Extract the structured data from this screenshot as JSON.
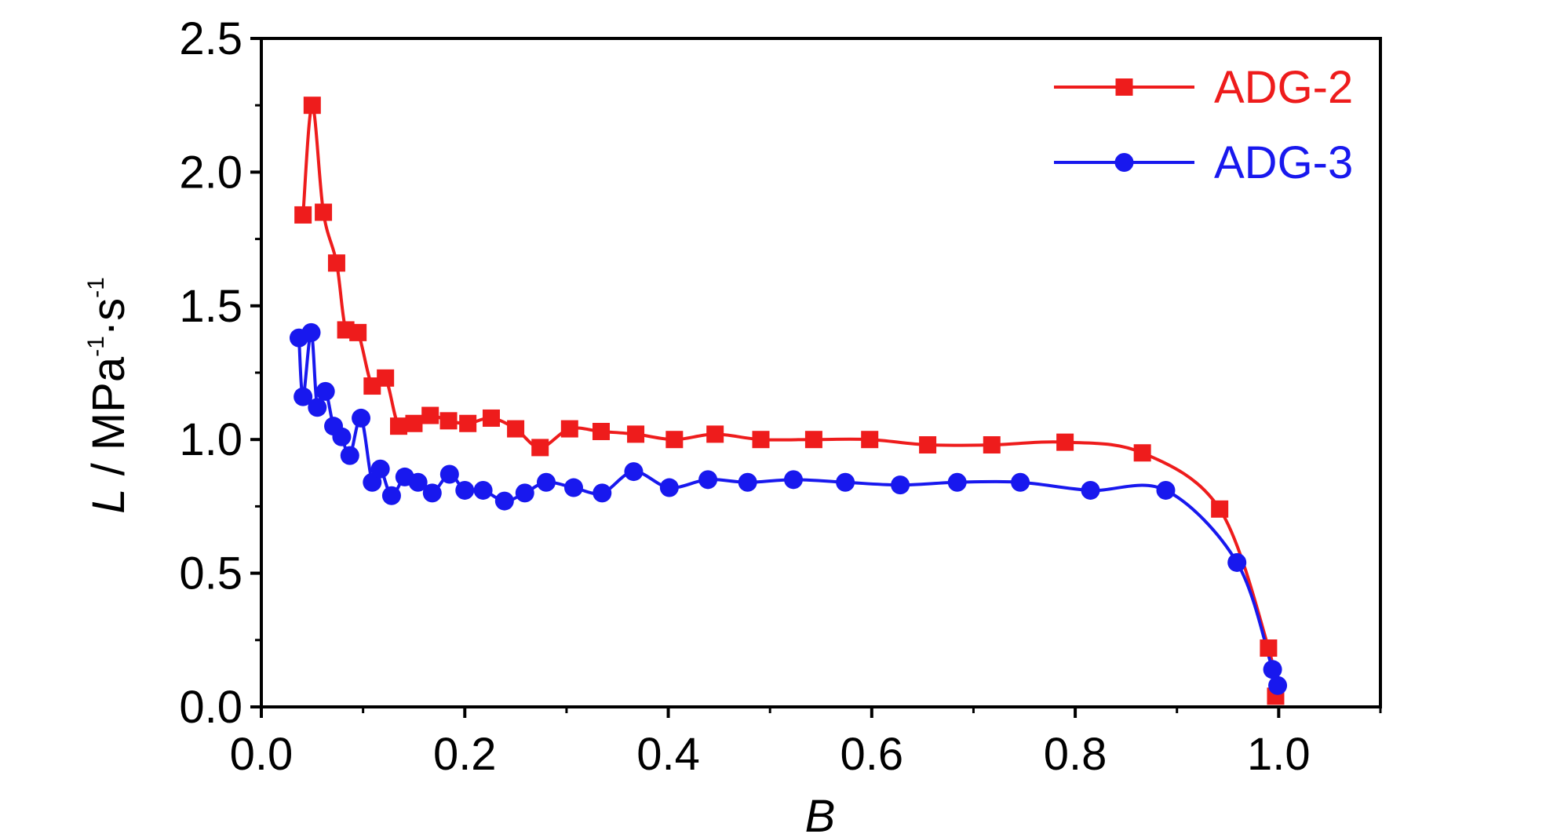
{
  "chart_data": {
    "type": "line",
    "xlabel": "B",
    "ylabel": {
      "var": "L",
      "unit_prefix": " / MPa",
      "sup1": "-1",
      "unit_mid": "·s",
      "sup2": "-1"
    },
    "xlim": [
      0,
      1.1
    ],
    "ylim": [
      0,
      2.5
    ],
    "xticks": [
      {
        "value": 0.0,
        "label": "0.0"
      },
      {
        "value": 0.2,
        "label": "0.2"
      },
      {
        "value": 0.4,
        "label": "0.4"
      },
      {
        "value": 0.6,
        "label": "0.6"
      },
      {
        "value": 0.8,
        "label": "0.8"
      },
      {
        "value": 1.0,
        "label": "1.0"
      }
    ],
    "yticks": [
      {
        "value": 0.0,
        "label": "0.0"
      },
      {
        "value": 0.5,
        "label": "0.5"
      },
      {
        "value": 1.0,
        "label": "1.0"
      },
      {
        "value": 1.5,
        "label": "1.5"
      },
      {
        "value": 2.0,
        "label": "2.0"
      },
      {
        "value": 2.5,
        "label": "2.5"
      }
    ],
    "grid": false,
    "legend_position": "top-right",
    "series": [
      {
        "name": "ADG-2",
        "color": "#ee1c1c",
        "marker": "square",
        "points": [
          [
            0.041,
            1.84
          ],
          [
            0.05,
            2.25
          ],
          [
            0.061,
            1.85
          ],
          [
            0.074,
            1.66
          ],
          [
            0.083,
            1.41
          ],
          [
            0.095,
            1.4
          ],
          [
            0.109,
            1.2
          ],
          [
            0.122,
            1.23
          ],
          [
            0.135,
            1.05
          ],
          [
            0.15,
            1.06
          ],
          [
            0.166,
            1.09
          ],
          [
            0.184,
            1.07
          ],
          [
            0.203,
            1.06
          ],
          [
            0.226,
            1.08
          ],
          [
            0.25,
            1.04
          ],
          [
            0.274,
            0.97
          ],
          [
            0.303,
            1.04
          ],
          [
            0.334,
            1.03
          ],
          [
            0.368,
            1.02
          ],
          [
            0.406,
            1.0
          ],
          [
            0.446,
            1.02
          ],
          [
            0.491,
            1.0
          ],
          [
            0.543,
            1.0
          ],
          [
            0.598,
            1.0
          ],
          [
            0.655,
            0.98
          ],
          [
            0.718,
            0.98
          ],
          [
            0.79,
            0.99
          ],
          [
            0.866,
            0.95
          ],
          [
            0.942,
            0.74
          ],
          [
            0.99,
            0.22
          ],
          [
            0.997,
            0.04
          ]
        ]
      },
      {
        "name": "ADG-3",
        "color": "#1818ee",
        "marker": "circle",
        "points": [
          [
            0.037,
            1.38
          ],
          [
            0.041,
            1.16
          ],
          [
            0.049,
            1.4
          ],
          [
            0.055,
            1.12
          ],
          [
            0.063,
            1.18
          ],
          [
            0.071,
            1.05
          ],
          [
            0.079,
            1.01
          ],
          [
            0.087,
            0.94
          ],
          [
            0.098,
            1.08
          ],
          [
            0.109,
            0.84
          ],
          [
            0.117,
            0.89
          ],
          [
            0.128,
            0.79
          ],
          [
            0.141,
            0.86
          ],
          [
            0.154,
            0.84
          ],
          [
            0.168,
            0.8
          ],
          [
            0.185,
            0.87
          ],
          [
            0.2,
            0.81
          ],
          [
            0.218,
            0.81
          ],
          [
            0.239,
            0.77
          ],
          [
            0.259,
            0.8
          ],
          [
            0.28,
            0.84
          ],
          [
            0.307,
            0.82
          ],
          [
            0.335,
            0.8
          ],
          [
            0.366,
            0.88
          ],
          [
            0.401,
            0.82
          ],
          [
            0.439,
            0.85
          ],
          [
            0.478,
            0.84
          ],
          [
            0.523,
            0.85
          ],
          [
            0.574,
            0.84
          ],
          [
            0.628,
            0.83
          ],
          [
            0.684,
            0.84
          ],
          [
            0.746,
            0.84
          ],
          [
            0.815,
            0.81
          ],
          [
            0.889,
            0.81
          ],
          [
            0.959,
            0.54
          ],
          [
            0.994,
            0.14
          ],
          [
            0.999,
            0.08
          ]
        ]
      }
    ]
  }
}
